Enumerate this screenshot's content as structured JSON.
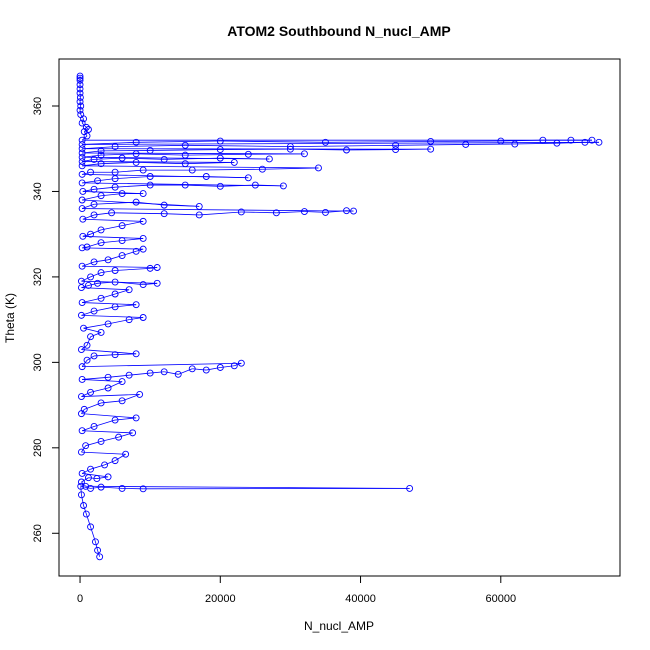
{
  "chart_data": {
    "type": "scatter",
    "title": "ATOM2 Southbound N_nucl_AMP",
    "xlabel": "N_nucl_AMP",
    "ylabel": "Theta (K)",
    "xlim": [
      -3000,
      77000
    ],
    "ylim": [
      250,
      371
    ],
    "xticks": [
      0,
      20000,
      40000,
      60000
    ],
    "yticks": [
      260,
      280,
      300,
      320,
      340,
      360
    ],
    "grid": false,
    "legend": "none",
    "marker": "open-circle",
    "connect_points": true,
    "color": "#0000ff",
    "series": [
      {
        "points": [
          [
            2800,
            254.5
          ],
          [
            2500,
            256.0
          ],
          [
            2200,
            258.0
          ],
          [
            1500,
            261.5
          ],
          [
            900,
            264.5
          ],
          [
            500,
            266.5
          ],
          [
            200,
            269
          ],
          [
            100,
            271
          ],
          [
            1500,
            270.5
          ],
          [
            3000,
            270.8
          ],
          [
            6000,
            270.5
          ],
          [
            9000,
            270.4
          ],
          [
            47000,
            270.5
          ],
          [
            800,
            271
          ],
          [
            200,
            272
          ],
          [
            1200,
            273
          ],
          [
            2400,
            272.8
          ],
          [
            4000,
            273.2
          ],
          [
            300,
            274
          ],
          [
            1500,
            275
          ],
          [
            3500,
            276
          ],
          [
            5000,
            277
          ],
          [
            6500,
            278.5
          ],
          [
            200,
            279
          ],
          [
            800,
            280.5
          ],
          [
            3000,
            281.5
          ],
          [
            5500,
            282.5
          ],
          [
            7500,
            283.5
          ],
          [
            300,
            284
          ],
          [
            2000,
            285
          ],
          [
            5000,
            286.5
          ],
          [
            8000,
            287
          ],
          [
            200,
            288
          ],
          [
            600,
            289
          ],
          [
            3000,
            290.5
          ],
          [
            6000,
            291
          ],
          [
            8500,
            292.5
          ],
          [
            200,
            292
          ],
          [
            1500,
            293
          ],
          [
            4000,
            294
          ],
          [
            6000,
            295.5
          ],
          [
            300,
            296
          ],
          [
            4000,
            296.5
          ],
          [
            7000,
            297
          ],
          [
            10000,
            297.5
          ],
          [
            12000,
            297.8
          ],
          [
            14000,
            297.2
          ],
          [
            16000,
            298.5
          ],
          [
            18000,
            298.2
          ],
          [
            20000,
            298.8
          ],
          [
            22000,
            299.2
          ],
          [
            23000,
            299.8
          ],
          [
            300,
            299
          ],
          [
            1000,
            300.5
          ],
          [
            2000,
            301.5
          ],
          [
            5000,
            301.8
          ],
          [
            8000,
            302
          ],
          [
            200,
            303
          ],
          [
            1000,
            304
          ],
          [
            1500,
            306
          ],
          [
            3000,
            307
          ],
          [
            500,
            308
          ],
          [
            4000,
            309
          ],
          [
            7000,
            310
          ],
          [
            9000,
            310.5
          ],
          [
            200,
            311
          ],
          [
            2000,
            312
          ],
          [
            5000,
            313
          ],
          [
            8000,
            313.5
          ],
          [
            300,
            314
          ],
          [
            3000,
            315
          ],
          [
            5000,
            316
          ],
          [
            7000,
            317
          ],
          [
            200,
            317.5
          ],
          [
            1200,
            318
          ],
          [
            2500,
            318.5
          ],
          [
            5000,
            318.8
          ],
          [
            9000,
            318.2
          ],
          [
            11000,
            318.5
          ],
          [
            200,
            319
          ],
          [
            1500,
            320
          ],
          [
            3000,
            321
          ],
          [
            5000,
            321.5
          ],
          [
            10000,
            322
          ],
          [
            11000,
            322.2
          ],
          [
            300,
            322.5
          ],
          [
            2000,
            323.5
          ],
          [
            4000,
            324
          ],
          [
            6000,
            325
          ],
          [
            8000,
            326
          ],
          [
            9000,
            326.5
          ],
          [
            300,
            326.8
          ],
          [
            1000,
            327
          ],
          [
            3000,
            328
          ],
          [
            6000,
            328.5
          ],
          [
            9000,
            329
          ],
          [
            400,
            329.5
          ],
          [
            1500,
            330
          ],
          [
            3000,
            331
          ],
          [
            6000,
            332
          ],
          [
            9000,
            333
          ],
          [
            400,
            333.5
          ],
          [
            2000,
            334.5
          ],
          [
            4500,
            335
          ],
          [
            12000,
            334.8
          ],
          [
            17000,
            334.5
          ],
          [
            23000,
            335.2
          ],
          [
            28000,
            335.0
          ],
          [
            32000,
            335.3
          ],
          [
            35000,
            335.1
          ],
          [
            38000,
            335.5
          ],
          [
            39000,
            335.4
          ],
          [
            300,
            336
          ],
          [
            2000,
            337
          ],
          [
            8000,
            337.5
          ],
          [
            12000,
            336.8
          ],
          [
            17000,
            336.5
          ],
          [
            300,
            338
          ],
          [
            3000,
            339
          ],
          [
            6000,
            339.5
          ],
          [
            9000,
            339.5
          ],
          [
            400,
            340
          ],
          [
            2000,
            340.5
          ],
          [
            5000,
            341
          ],
          [
            10000,
            341.5
          ],
          [
            15000,
            341.5
          ],
          [
            20000,
            341.2
          ],
          [
            25000,
            341.5
          ],
          [
            29000,
            341.3
          ],
          [
            300,
            342
          ],
          [
            2500,
            342.5
          ],
          [
            5000,
            343
          ],
          [
            10000,
            343.5
          ],
          [
            18000,
            343.5
          ],
          [
            24000,
            343.2
          ],
          [
            300,
            344
          ],
          [
            1500,
            344.5
          ],
          [
            5000,
            344.5
          ],
          [
            9000,
            345
          ],
          [
            16000,
            345
          ],
          [
            26000,
            345.2
          ],
          [
            34000,
            345.5
          ],
          [
            300,
            346
          ],
          [
            3000,
            346.5
          ],
          [
            8000,
            346.8
          ],
          [
            15000,
            346.5
          ],
          [
            22000,
            346.8
          ],
          [
            300,
            347
          ],
          [
            2000,
            347.5
          ],
          [
            6000,
            347.8
          ],
          [
            12000,
            347.5
          ],
          [
            20000,
            347.8
          ],
          [
            27000,
            347.6
          ],
          [
            300,
            348
          ],
          [
            3000,
            348.5
          ],
          [
            8000,
            348.8
          ],
          [
            15000,
            348.5
          ],
          [
            24000,
            348.7
          ],
          [
            32000,
            348.8
          ],
          [
            300,
            349
          ],
          [
            3000,
            349.5
          ],
          [
            10000,
            349.6
          ],
          [
            20000,
            349.8
          ],
          [
            30000,
            349.9
          ],
          [
            38000,
            349.7
          ],
          [
            45000,
            349.8
          ],
          [
            50000,
            349.9
          ],
          [
            300,
            350
          ],
          [
            5000,
            350.5
          ],
          [
            15000,
            350.8
          ],
          [
            30000,
            350.5
          ],
          [
            45000,
            350.8
          ],
          [
            55000,
            351.0
          ],
          [
            62000,
            351.1
          ],
          [
            68000,
            351.3
          ],
          [
            72000,
            351.5
          ],
          [
            74000,
            351.5
          ],
          [
            300,
            351
          ],
          [
            8000,
            351.5
          ],
          [
            20000,
            351.8
          ],
          [
            35000,
            351.5
          ],
          [
            50000,
            351.7
          ],
          [
            60000,
            351.8
          ],
          [
            66000,
            352.0
          ],
          [
            70000,
            352.0
          ],
          [
            73000,
            352.0
          ],
          [
            300,
            352
          ],
          [
            1000,
            353
          ],
          [
            600,
            354
          ],
          [
            1200,
            354.5
          ],
          [
            900,
            355
          ],
          [
            300,
            356
          ],
          [
            500,
            357
          ],
          [
            100,
            358
          ],
          [
            0,
            359
          ],
          [
            100,
            360
          ],
          [
            0,
            361
          ],
          [
            50,
            362
          ],
          [
            0,
            363
          ],
          [
            0,
            364
          ],
          [
            0,
            365
          ],
          [
            0,
            366
          ],
          [
            0,
            366.5
          ],
          [
            0,
            367
          ]
        ]
      }
    ]
  }
}
